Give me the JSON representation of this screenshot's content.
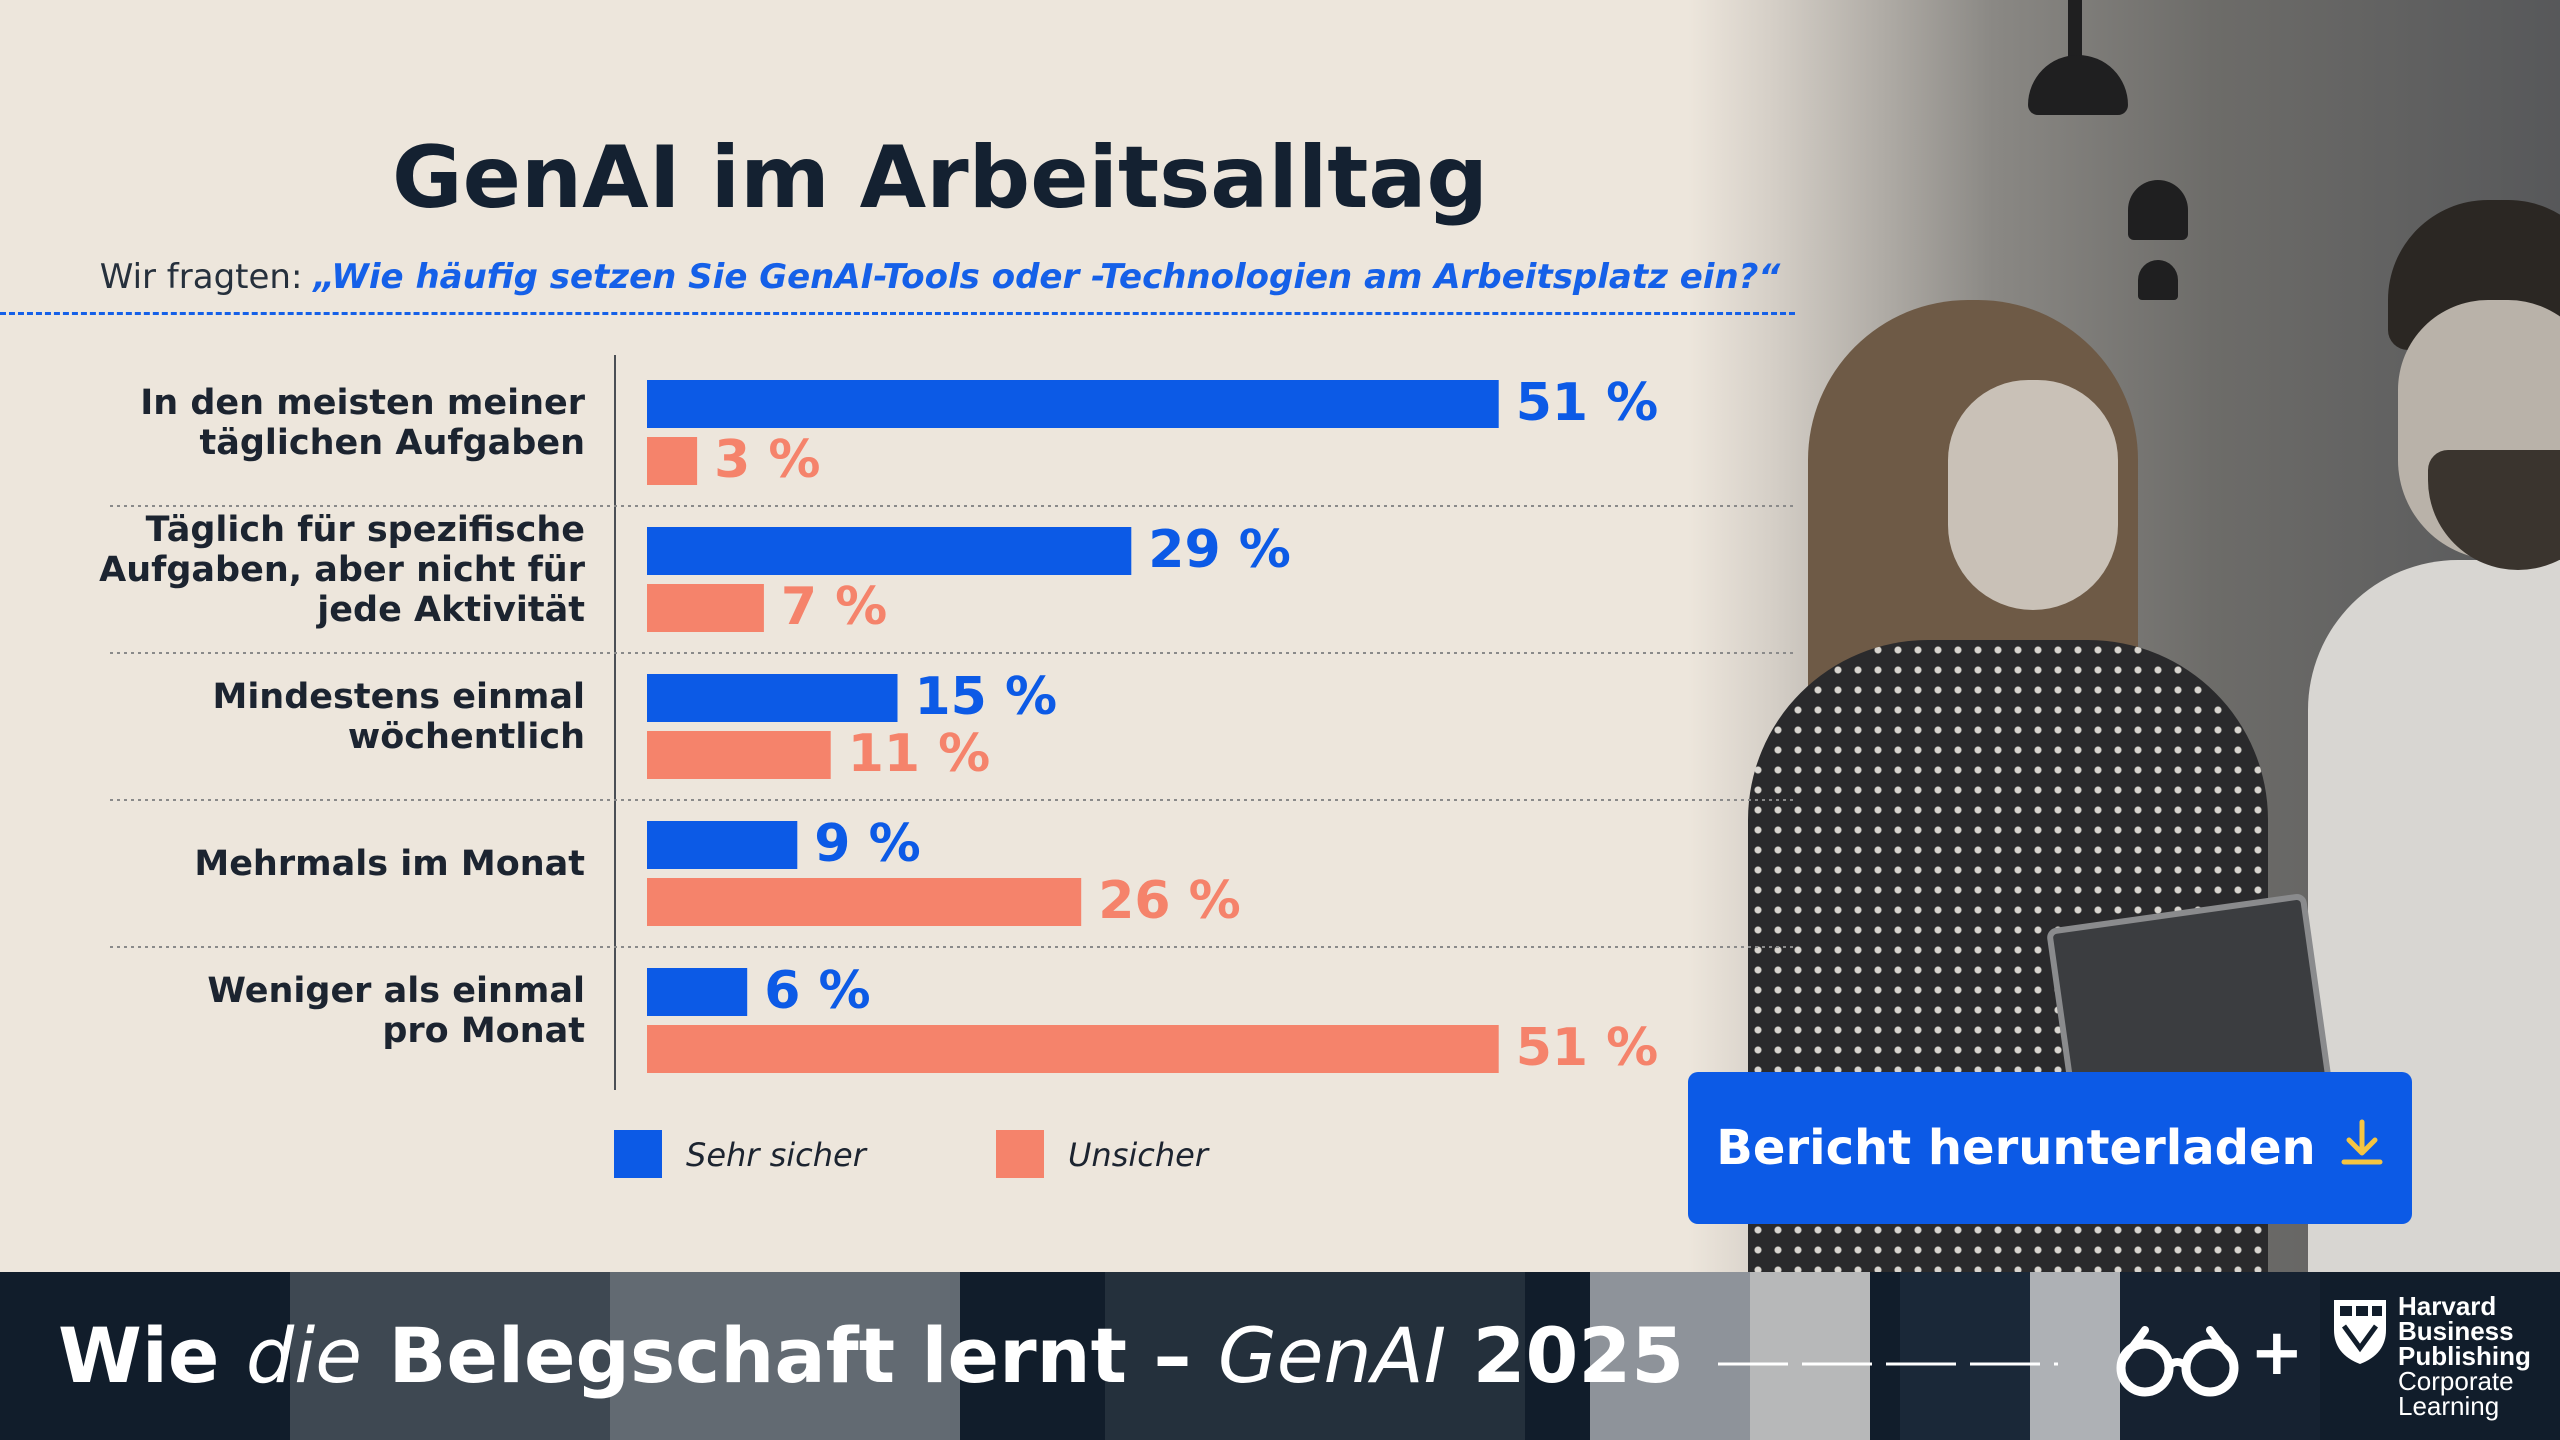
{
  "page": {
    "title": "GenAI im Arbeitsalltag",
    "subtitle_prefix": "Wir fragten: ",
    "subtitle_question": "„Wie häufig setzen Sie GenAI-Tools oder -Technologien am Arbeitsplatz ein?“"
  },
  "colors": {
    "background": "#ede6dc",
    "series_primary": "#0c5ae6",
    "series_secondary": "#f5836b",
    "title": "#142131",
    "footer": "#111d2b"
  },
  "chart_data": {
    "type": "bar",
    "orientation": "horizontal",
    "title": "GenAI im Arbeitsalltag",
    "categories": [
      [
        "In den meisten meiner",
        "täglichen Aufgaben"
      ],
      [
        "Täglich für spezifische",
        "Aufgaben, aber nicht für",
        "jede Aktivität"
      ],
      [
        "Mindestens einmal",
        "wöchentlich"
      ],
      [
        "Mehrmals im Monat"
      ],
      [
        "Weniger als einmal",
        "pro Monat"
      ]
    ],
    "series": [
      {
        "name": "Sehr sicher",
        "color": "#0c5ae6",
        "values": [
          51,
          29,
          15,
          9,
          6
        ]
      },
      {
        "name": "Unsicher",
        "color": "#f5836b",
        "values": [
          3,
          7,
          11,
          26,
          51
        ]
      }
    ],
    "value_suffix": " %",
    "xlim": [
      0,
      55
    ],
    "grid": false,
    "legend_position": "bottom-left"
  },
  "cta": {
    "label": "Bericht herunterladen",
    "icon": "download-arrow-icon"
  },
  "footer": {
    "title_part1": "Wie ",
    "title_part2": "die",
    "title_part3": " Belegschaft lernt – ",
    "title_part4": "GenAI",
    "title_part5": " 2025",
    "plus": "+",
    "brand_line1": "Harvard",
    "brand_line2": "Business",
    "brand_line3": "Publishing",
    "brand_line4": "Corporate",
    "brand_line5": "Learning"
  }
}
